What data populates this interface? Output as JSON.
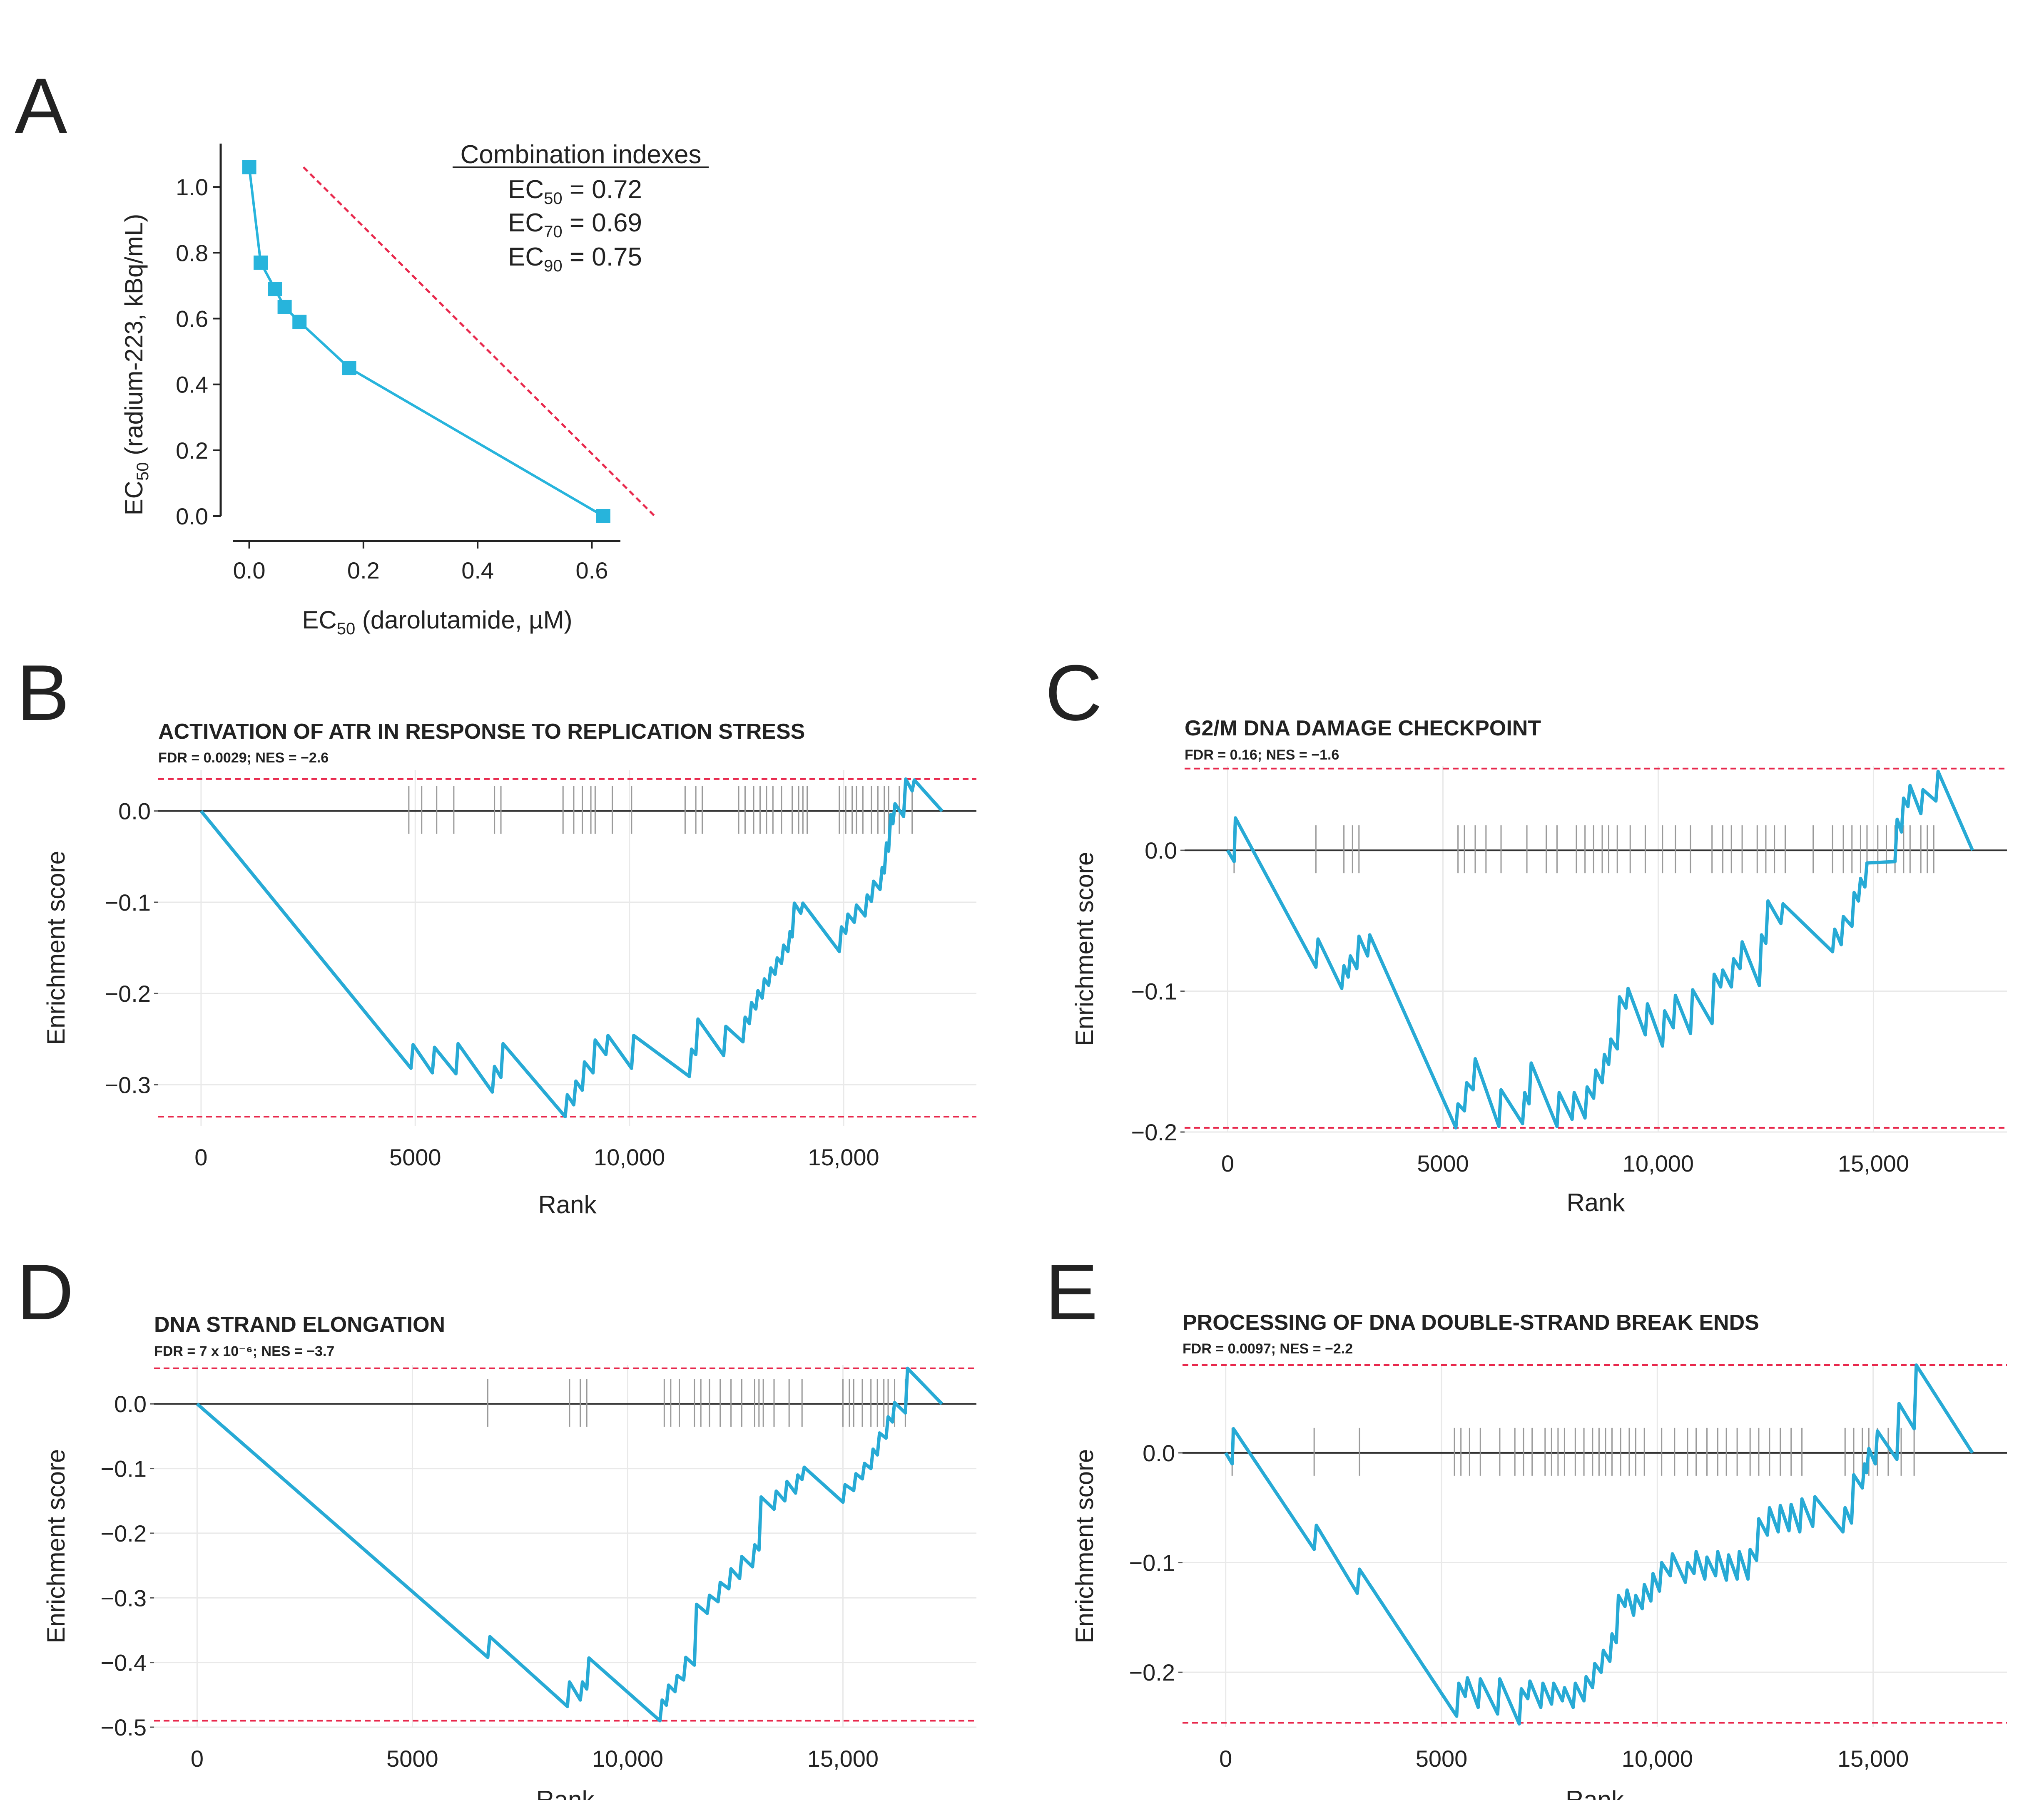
{
  "panels": {
    "A": "A",
    "B": "B",
    "C": "C",
    "D": "D",
    "E": "E"
  },
  "isobologram": {
    "xlabel_main": "EC",
    "xlabel_sub": "50",
    "xlabel_rest": " (darolutamide, µM)",
    "ylabel_main": "EC",
    "ylabel_sub": "50",
    "ylabel_rest": " (radium-223, kBq/mL)",
    "legend_title": "Combination indexes",
    "ci_rows": [
      {
        "main": "EC",
        "sub": "50",
        "value": " = 0.72"
      },
      {
        "main": "EC",
        "sub": "70",
        "value": " = 0.69"
      },
      {
        "main": "EC",
        "sub": "90",
        "value": " = 0.75"
      }
    ],
    "x_ticks": [
      "0.0",
      "0.2",
      "0.4",
      "0.6"
    ],
    "y_ticks": [
      "0.0",
      "0.2",
      "0.4",
      "0.6",
      "0.8",
      "1.0"
    ],
    "line_color": "#27b4dc",
    "ref_line_color": "#e8284c"
  },
  "gsea_common": {
    "xlabel": "Rank",
    "ylabel": "Enrichment score",
    "x_ticks": [
      "0",
      "5000",
      "10,000",
      "15,000"
    ],
    "curve_color": "#27aad5",
    "dash_color": "#e8284c",
    "hit_color": "#9a9a9a"
  },
  "chart_data": [
    {
      "type": "line",
      "panel": "A",
      "title": "",
      "xlabel": "EC50 (darolutamide, µM)",
      "ylabel": "EC50 (radium-223, kBq/mL)",
      "xlim": [
        -0.05,
        0.65
      ],
      "ylim": [
        0,
        1.1
      ],
      "x": [
        0.0,
        0.02,
        0.045,
        0.062,
        0.088,
        0.175,
        0.62
      ],
      "y": [
        1.06,
        0.77,
        0.69,
        0.635,
        0.59,
        0.45,
        0.0
      ],
      "reference_line": {
        "x": [
          0.095,
          0.71
        ],
        "y": [
          1.06,
          0.0
        ]
      },
      "combination_indexes": {
        "EC50": 0.72,
        "EC70": 0.69,
        "EC90": 0.75
      }
    },
    {
      "type": "line",
      "panel": "B",
      "title": "ACTIVATION OF ATR IN RESPONSE TO REPLICATION STRESS",
      "subtitle": "FDR = 0.0029; NES = −2.6",
      "xlabel": "Rank",
      "ylabel": "Enrichment score",
      "xlim": [
        -1000,
        18100
      ],
      "ylim": [
        -0.345,
        0.045
      ],
      "y_ticks": [
        0.0,
        -0.1,
        -0.2,
        -0.3
      ],
      "y_tick_labels": [
        "0.0",
        "−0.1",
        "−0.2",
        "−0.3"
      ],
      "dashed_lines": [
        0.035,
        -0.335
      ],
      "x": [
        0,
        4900,
        4950,
        5400,
        5450,
        5950,
        6000,
        6800,
        6850,
        7000,
        7050,
        8500,
        8550,
        8700,
        8750,
        8900,
        8950,
        9150,
        9200,
        9450,
        9500,
        10050,
        10100,
        11400,
        11450,
        11550,
        11600,
        12200,
        12250,
        12650,
        12700,
        12800,
        12850,
        12950,
        13000,
        13100,
        13150,
        13250,
        13300,
        13400,
        13450,
        13550,
        13600,
        13700,
        13750,
        13800,
        13850,
        14000,
        14050,
        14900,
        14950,
        15050,
        15100,
        15250,
        15300,
        15500,
        15550,
        15650,
        15700,
        15850,
        15900,
        15950,
        16000,
        16050,
        16100,
        16150,
        16200,
        16400,
        16450,
        16600,
        16650,
        17300
      ],
      "y": [
        0,
        -0.282,
        -0.256,
        -0.287,
        -0.259,
        -0.288,
        -0.255,
        -0.308,
        -0.28,
        -0.292,
        -0.255,
        -0.335,
        -0.311,
        -0.322,
        -0.296,
        -0.306,
        -0.275,
        -0.287,
        -0.251,
        -0.267,
        -0.246,
        -0.282,
        -0.246,
        -0.291,
        -0.261,
        -0.267,
        -0.228,
        -0.268,
        -0.236,
        -0.253,
        -0.226,
        -0.233,
        -0.21,
        -0.217,
        -0.197,
        -0.205,
        -0.184,
        -0.191,
        -0.172,
        -0.179,
        -0.161,
        -0.167,
        -0.147,
        -0.154,
        -0.132,
        -0.138,
        -0.101,
        -0.112,
        -0.101,
        -0.154,
        -0.127,
        -0.134,
        -0.113,
        -0.122,
        -0.103,
        -0.115,
        -0.092,
        -0.099,
        -0.077,
        -0.086,
        -0.062,
        -0.068,
        -0.035,
        -0.044,
        -0.004,
        -0.014,
        0.008,
        -0.006,
        0.035,
        0.022,
        0.034,
        0.0
      ],
      "hits": [
        4850,
        5150,
        5500,
        5900,
        6850,
        7000,
        8450,
        8700,
        8900,
        9100,
        9200,
        9600,
        10050,
        11300,
        11550,
        11700,
        12550,
        12700,
        12900,
        13050,
        13200,
        13350,
        13550,
        13800,
        13950,
        14050,
        14150,
        14900,
        15050,
        15200,
        15300,
        15450,
        15650,
        15800,
        15950,
        16050,
        16300,
        16600
      ]
    },
    {
      "type": "line",
      "panel": "C",
      "title": "G2/M DNA DAMAGE CHECKPOINT",
      "subtitle": "FDR = 0.16; NES = −1.6",
      "xlabel": "Rank",
      "ylabel": "Enrichment score",
      "xlim": [
        -1000,
        18100
      ],
      "ylim": [
        -0.2,
        0.06
      ],
      "y_ticks": [
        0.0,
        -0.1,
        -0.2
      ],
      "y_tick_labels": [
        "0.0",
        "−0.1",
        "−0.2"
      ],
      "dashed_lines": [
        0.058,
        -0.197
      ],
      "x": [
        0,
        150,
        180,
        2050,
        2100,
        2650,
        2700,
        2800,
        2850,
        3000,
        3050,
        3250,
        3300,
        5300,
        5350,
        5500,
        5550,
        5700,
        5750,
        6300,
        6350,
        6850,
        6900,
        7000,
        7050,
        7650,
        7700,
        8000,
        8050,
        8300,
        8350,
        8500,
        8550,
        8700,
        8750,
        8850,
        8900,
        9050,
        9100,
        9250,
        9300,
        9700,
        9750,
        10100,
        10150,
        10350,
        10400,
        10750,
        10800,
        11250,
        11300,
        11450,
        11500,
        11700,
        11750,
        11900,
        11950,
        12350,
        12400,
        12500,
        12550,
        12850,
        12900,
        14050,
        14100,
        14250,
        14300,
        14500,
        14550,
        14650,
        14700,
        14800,
        14850,
        15500,
        15550,
        15650,
        15700,
        15800,
        15850,
        16100,
        16150,
        16450,
        16500,
        17300
      ],
      "y": [
        0,
        -0.008,
        0.023,
        -0.083,
        -0.063,
        -0.098,
        -0.082,
        -0.09,
        -0.075,
        -0.084,
        -0.061,
        -0.075,
        -0.06,
        -0.197,
        -0.18,
        -0.185,
        -0.165,
        -0.17,
        -0.148,
        -0.196,
        -0.17,
        -0.194,
        -0.172,
        -0.18,
        -0.151,
        -0.196,
        -0.172,
        -0.191,
        -0.172,
        -0.19,
        -0.168,
        -0.176,
        -0.156,
        -0.165,
        -0.145,
        -0.152,
        -0.134,
        -0.141,
        -0.104,
        -0.112,
        -0.098,
        -0.131,
        -0.109,
        -0.139,
        -0.114,
        -0.126,
        -0.103,
        -0.13,
        -0.099,
        -0.123,
        -0.088,
        -0.097,
        -0.085,
        -0.097,
        -0.077,
        -0.084,
        -0.065,
        -0.096,
        -0.06,
        -0.066,
        -0.036,
        -0.052,
        -0.038,
        -0.072,
        -0.056,
        -0.067,
        -0.047,
        -0.054,
        -0.03,
        -0.036,
        -0.02,
        -0.026,
        -0.009,
        -0.008,
        0.022,
        0.013,
        0.037,
        0.031,
        0.046,
        0.026,
        0.043,
        0.035,
        0.056,
        0.0
      ],
      "hits": [
        150,
        2050,
        2700,
        2900,
        3050,
        5350,
        5500,
        5750,
        6000,
        6350,
        6950,
        7400,
        7650,
        8100,
        8300,
        8500,
        8700,
        8850,
        9050,
        9350,
        9700,
        10100,
        10400,
        10750,
        11250,
        11500,
        11700,
        11950,
        12300,
        12500,
        12700,
        12950,
        13600,
        14050,
        14300,
        14500,
        14700,
        14850,
        15100,
        15300,
        15500,
        15700,
        15850,
        16100,
        16250,
        16400
      ]
    },
    {
      "type": "line",
      "panel": "D",
      "title": "DNA STRAND ELONGATION",
      "subtitle": "FDR = 7 x 10⁻⁶; NES = −3.7",
      "xlabel": "Rank",
      "ylabel": "Enrichment score",
      "xlim": [
        -1000,
        18100
      ],
      "ylim": [
        -0.5,
        0.06
      ],
      "y_ticks": [
        0.0,
        -0.1,
        -0.2,
        -0.3,
        -0.4,
        -0.5
      ],
      "y_tick_labels": [
        "0.0",
        "−0.1",
        "−0.2",
        "−0.3",
        "−0.4",
        "−0.5"
      ],
      "dashed_lines": [
        0.055,
        -0.49
      ],
      "x": [
        0,
        6750,
        6800,
        8600,
        8650,
        8900,
        8950,
        9050,
        9100,
        10750,
        10800,
        10900,
        10950,
        11100,
        11150,
        11300,
        11350,
        11550,
        11600,
        11850,
        11900,
        12100,
        12150,
        12350,
        12400,
        12600,
        12650,
        12900,
        12950,
        13050,
        13100,
        13400,
        13450,
        13650,
        13700,
        13900,
        13950,
        14050,
        14100,
        15000,
        15050,
        15250,
        15300,
        15450,
        15500,
        15650,
        15700,
        15800,
        15850,
        16000,
        16050,
        16150,
        16200,
        16450,
        16500,
        17300
      ],
      "y": [
        0,
        -0.392,
        -0.36,
        -0.468,
        -0.43,
        -0.458,
        -0.43,
        -0.441,
        -0.393,
        -0.49,
        -0.458,
        -0.466,
        -0.435,
        -0.445,
        -0.42,
        -0.427,
        -0.392,
        -0.404,
        -0.31,
        -0.324,
        -0.296,
        -0.306,
        -0.276,
        -0.286,
        -0.255,
        -0.27,
        -0.236,
        -0.252,
        -0.218,
        -0.226,
        -0.144,
        -0.163,
        -0.135,
        -0.15,
        -0.12,
        -0.138,
        -0.11,
        -0.117,
        -0.098,
        -0.152,
        -0.125,
        -0.134,
        -0.108,
        -0.116,
        -0.092,
        -0.1,
        -0.07,
        -0.079,
        -0.045,
        -0.053,
        -0.02,
        -0.028,
        0.002,
        -0.014,
        0.055,
        0.0
      ],
      "hits": [
        6750,
        8650,
        8900,
        9050,
        10850,
        11000,
        11200,
        11550,
        11700,
        11900,
        12150,
        12400,
        12650,
        12950,
        13050,
        13150,
        13400,
        13750,
        14050,
        15000,
        15150,
        15250,
        15450,
        15650,
        15800,
        15950,
        16050,
        16200,
        16450
      ]
    },
    {
      "type": "line",
      "panel": "E",
      "title": "PROCESSING OF DNA DOUBLE-STRAND BREAK ENDS",
      "subtitle": "FDR = 0.0097; NES = −2.2",
      "xlabel": "Rank",
      "ylabel": "Enrichment score",
      "xlim": [
        -1000,
        18100
      ],
      "ylim": [
        -0.25,
        0.08
      ],
      "y_ticks": [
        0.0,
        -0.1,
        -0.2
      ],
      "y_tick_labels": [
        "0.0",
        "−0.1",
        "−0.2"
      ],
      "dashed_lines": [
        0.08,
        -0.246
      ],
      "x": [
        0,
        150,
        180,
        2050,
        2100,
        3050,
        3100,
        5350,
        5400,
        5550,
        5600,
        5850,
        5900,
        6300,
        6350,
        6800,
        6850,
        7000,
        7050,
        7300,
        7350,
        7550,
        7600,
        7800,
        7850,
        8050,
        8100,
        8300,
        8350,
        8500,
        8550,
        8700,
        8750,
        8900,
        8950,
        9050,
        9100,
        9250,
        9300,
        9450,
        9500,
        9650,
        9700,
        9850,
        9900,
        10050,
        10100,
        10300,
        10350,
        10650,
        10700,
        10850,
        10900,
        11100,
        11150,
        11350,
        11400,
        11600,
        11650,
        11850,
        11900,
        12100,
        12150,
        12300,
        12350,
        12550,
        12600,
        12800,
        12850,
        13050,
        13100,
        13300,
        13350,
        13600,
        13650,
        14300,
        14350,
        14500,
        14550,
        14750,
        14800,
        14850,
        14900,
        15050,
        15100,
        15550,
        15600,
        15950,
        16000,
        17300
      ],
      "y": [
        0,
        -0.01,
        0.022,
        -0.088,
        -0.066,
        -0.128,
        -0.106,
        -0.24,
        -0.21,
        -0.222,
        -0.205,
        -0.232,
        -0.206,
        -0.238,
        -0.206,
        -0.247,
        -0.215,
        -0.224,
        -0.208,
        -0.232,
        -0.21,
        -0.229,
        -0.21,
        -0.226,
        -0.214,
        -0.232,
        -0.21,
        -0.226,
        -0.204,
        -0.214,
        -0.192,
        -0.2,
        -0.18,
        -0.19,
        -0.165,
        -0.173,
        -0.13,
        -0.14,
        -0.125,
        -0.148,
        -0.13,
        -0.142,
        -0.12,
        -0.135,
        -0.11,
        -0.126,
        -0.1,
        -0.112,
        -0.092,
        -0.118,
        -0.1,
        -0.11,
        -0.09,
        -0.115,
        -0.095,
        -0.112,
        -0.09,
        -0.116,
        -0.093,
        -0.115,
        -0.09,
        -0.115,
        -0.088,
        -0.098,
        -0.06,
        -0.075,
        -0.05,
        -0.072,
        -0.048,
        -0.071,
        -0.047,
        -0.072,
        -0.042,
        -0.067,
        -0.04,
        -0.072,
        -0.05,
        -0.064,
        -0.02,
        -0.032,
        -0.01,
        -0.018,
        0.004,
        -0.01,
        0.02,
        -0.006,
        0.045,
        0.022,
        0.08,
        0.0
      ],
      "hits": [
        150,
        2050,
        3100,
        5300,
        5450,
        5650,
        5900,
        6350,
        6700,
        6900,
        7100,
        7400,
        7550,
        7700,
        7850,
        8100,
        8300,
        8500,
        8650,
        8800,
        8950,
        9150,
        9350,
        9500,
        9700,
        10100,
        10400,
        10700,
        10900,
        11150,
        11400,
        11600,
        11850,
        12150,
        12350,
        12600,
        12850,
        13100,
        13350,
        14350,
        14550,
        14750,
        14900,
        15100,
        15350,
        15650,
        15950
      ]
    }
  ]
}
